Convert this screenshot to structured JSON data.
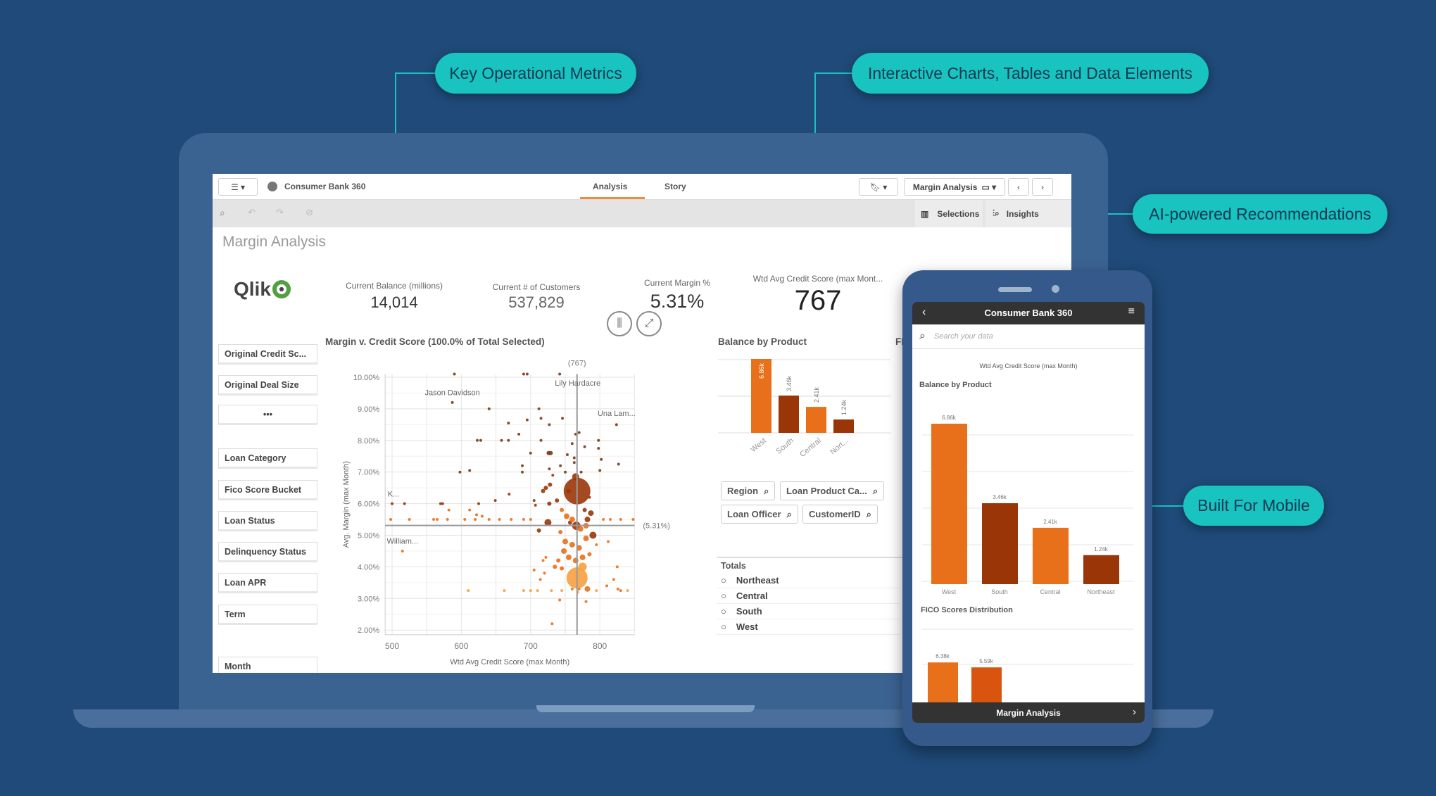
{
  "callouts": {
    "key_metrics": "Key Operational Metrics",
    "interactive": "Interactive Charts, Tables and Data Elements",
    "ai": "AI-powered Recommendations",
    "mobile": "Built For Mobile"
  },
  "colors": {
    "background": "#1f4a79",
    "accent": "#19c3c0",
    "orange": "#e8701a",
    "dark": "#9a3508",
    "light": "#f7a040"
  },
  "app": {
    "title": "Consumer Bank 360",
    "tabs": [
      "Analysis",
      "Story"
    ],
    "active_tab": "Analysis",
    "sheet_selector": "Margin Analysis",
    "selections": "Selections",
    "insights": "Insights",
    "sheet_title": "Margin Analysis",
    "logo": "Qlik"
  },
  "kpis": [
    {
      "label": "Current Balance (millions)",
      "value": "14,014"
    },
    {
      "label": "Current # of Customers",
      "value": "537,829"
    },
    {
      "label": "Current Margin %",
      "value": "5.31%"
    },
    {
      "label": "Wtd Avg Credit Score (max Mont...",
      "value": "767"
    }
  ],
  "filters": [
    "Original Credit Sc...",
    "Original Deal Size",
    "•••",
    "Loan Category",
    "Fico Score Bucket",
    "Loan Status",
    "Delinquency Status",
    "Loan APR",
    "Term",
    "Month"
  ],
  "search_chips": [
    "Region",
    "Loan Product Ca...",
    "Loan Officer",
    "CustomerID"
  ],
  "totals": {
    "title": "Totals",
    "items": [
      "Northeast",
      "Central",
      "South",
      "West"
    ]
  },
  "cut_title": "FI",
  "chart_data": [
    {
      "type": "scatter",
      "title": "Margin v. Credit Score (100.0% of Total Selected)",
      "xlabel": "Wtd Avg Credit Score (max Month)",
      "ylabel": "Avg. Margin (max Month)",
      "xlim": [
        490,
        850
      ],
      "ylim": [
        1.85,
        10.1
      ],
      "xticks": [
        "500",
        "600",
        "700",
        "800"
      ],
      "xtick_values": [
        500,
        600,
        700,
        800
      ],
      "yticks": [
        "10.00%",
        "9.00%",
        "8.00%",
        "7.00%",
        "6.00%",
        "5.00%",
        "4.00%",
        "3.00%",
        "2.00%"
      ],
      "ytick_values": [
        10,
        9,
        8,
        7,
        6,
        5,
        4,
        3,
        2
      ],
      "ref_x": 767,
      "ref_x_label": "(767)",
      "ref_y": 5.31,
      "ref_y_label": "(5.31%)",
      "annotations": [
        {
          "text": "Jason Davidson",
          "x": 587,
          "y": 9.25
        },
        {
          "text": "Lily Hardacre",
          "x": 768,
          "y": 9.55
        },
        {
          "text": "Una Lam...",
          "x": 824,
          "y": 8.6
        },
        {
          "text": "K...",
          "x": 502,
          "y": 6.05
        },
        {
          "text": "William...",
          "x": 515,
          "y": 4.55
        }
      ],
      "points": [
        [
          590,
          10.1,
          2,
          3
        ],
        [
          690,
          10.1,
          2,
          3
        ],
        [
          695,
          10.1,
          2,
          3
        ],
        [
          742,
          10.1,
          2,
          3
        ],
        [
          587,
          9.2,
          2,
          3
        ],
        [
          640,
          9.0,
          2,
          3
        ],
        [
          712,
          9.0,
          2,
          3
        ],
        [
          668,
          8.55,
          2,
          3
        ],
        [
          695,
          8.65,
          2,
          3
        ],
        [
          715,
          8.7,
          2,
          3
        ],
        [
          746,
          8.7,
          2,
          3
        ],
        [
          727,
          8.5,
          2,
          3
        ],
        [
          824,
          8.5,
          2,
          3
        ],
        [
          683,
          8.2,
          2,
          3
        ],
        [
          765,
          8.2,
          2,
          3
        ],
        [
          770,
          8.25,
          2,
          3
        ],
        [
          623,
          8.0,
          2,
          3
        ],
        [
          628,
          8.0,
          2,
          3
        ],
        [
          658,
          8.0,
          2,
          3
        ],
        [
          668,
          8.0,
          2,
          3
        ],
        [
          715,
          8.0,
          2,
          3
        ],
        [
          798,
          8.0,
          2,
          3
        ],
        [
          760,
          7.9,
          2,
          3
        ],
        [
          778,
          7.8,
          2,
          3
        ],
        [
          798,
          7.75,
          2,
          3
        ],
        [
          700,
          7.6,
          2,
          3
        ],
        [
          726,
          7.6,
          3,
          3
        ],
        [
          729,
          7.6,
          3,
          3
        ],
        [
          753,
          7.55,
          2,
          3
        ],
        [
          763,
          7.45,
          2,
          3
        ],
        [
          802,
          7.4,
          2,
          3
        ],
        [
          688,
          7.2,
          2,
          3
        ],
        [
          727,
          7.1,
          2,
          3
        ],
        [
          743,
          7.2,
          2,
          3
        ],
        [
          763,
          7.3,
          2,
          3
        ],
        [
          827,
          7.25,
          2,
          3
        ],
        [
          598,
          7.0,
          2,
          3
        ],
        [
          612,
          7.05,
          2,
          3
        ],
        [
          688,
          7.0,
          2,
          3
        ],
        [
          750,
          7.0,
          2,
          3
        ],
        [
          773,
          7.0,
          2,
          3
        ],
        [
          800,
          7.05,
          2,
          3
        ],
        [
          767,
          6.4,
          19,
          0
        ],
        [
          765,
          6.85,
          5,
          0
        ],
        [
          728,
          6.6,
          3,
          0
        ],
        [
          718,
          6.4,
          3,
          0
        ],
        [
          722,
          6.5,
          3,
          0
        ],
        [
          755,
          6.4,
          3,
          0
        ],
        [
          738,
          6.1,
          3,
          0
        ],
        [
          727,
          6.0,
          3,
          0
        ],
        [
          705,
          6.1,
          2,
          0
        ],
        [
          785,
          6.2,
          2,
          0
        ],
        [
          732,
          6.9,
          2,
          0
        ],
        [
          669,
          6.3,
          2,
          0
        ],
        [
          649,
          6.1,
          2,
          0
        ],
        [
          625,
          6.0,
          2,
          0
        ],
        [
          570,
          6.0,
          2,
          0
        ],
        [
          573,
          6.0,
          2,
          0
        ],
        [
          518,
          6.0,
          2,
          0
        ],
        [
          500,
          6.0,
          2,
          0
        ],
        [
          707,
          5.95,
          2,
          0
        ],
        [
          725,
          5.4,
          5,
          0
        ],
        [
          757,
          5.4,
          3,
          0
        ],
        [
          766,
          5.3,
          6,
          0
        ],
        [
          790,
          5.0,
          5,
          0
        ],
        [
          712,
          5.15,
          3,
          0
        ],
        [
          778,
          5.8,
          3,
          0
        ],
        [
          787,
          5.7,
          4,
          0
        ],
        [
          782,
          5.5,
          4,
          0
        ],
        [
          498,
          5.5,
          2,
          1
        ],
        [
          525,
          5.5,
          2,
          1
        ],
        [
          560,
          5.5,
          2,
          1
        ],
        [
          565,
          5.5,
          2,
          1
        ],
        [
          580,
          5.5,
          2,
          1
        ],
        [
          605,
          5.5,
          2,
          1
        ],
        [
          620,
          5.5,
          2,
          1
        ],
        [
          640,
          5.5,
          2,
          1
        ],
        [
          655,
          5.5,
          2,
          1
        ],
        [
          672,
          5.5,
          2,
          1
        ],
        [
          690,
          5.5,
          2,
          1
        ],
        [
          700,
          5.5,
          2,
          1
        ],
        [
          805,
          5.5,
          2,
          1
        ],
        [
          815,
          5.5,
          2,
          1
        ],
        [
          830,
          5.5,
          2,
          1
        ],
        [
          848,
          5.5,
          2,
          1
        ],
        [
          745,
          5.8,
          3,
          1
        ],
        [
          752,
          5.6,
          4,
          1
        ],
        [
          760,
          5.5,
          4,
          1
        ],
        [
          772,
          5.2,
          4,
          1
        ],
        [
          780,
          5.3,
          4,
          1
        ],
        [
          743,
          5.1,
          3,
          1
        ],
        [
          750,
          4.8,
          4,
          1
        ],
        [
          760,
          4.7,
          4,
          1
        ],
        [
          770,
          4.6,
          4,
          1
        ],
        [
          780,
          4.9,
          4,
          1
        ],
        [
          748,
          4.5,
          4,
          1
        ],
        [
          755,
          4.3,
          4,
          1
        ],
        [
          765,
          4.2,
          4,
          1
        ],
        [
          775,
          4.3,
          4,
          1
        ],
        [
          785,
          4.4,
          3,
          1
        ],
        [
          740,
          4.2,
          3,
          1
        ],
        [
          735,
          4.0,
          3,
          1
        ],
        [
          745,
          3.95,
          3,
          1
        ],
        [
          722,
          4.3,
          2,
          1
        ],
        [
          718,
          4.2,
          2,
          1
        ],
        [
          795,
          4.7,
          2,
          1
        ],
        [
          812,
          4.8,
          2,
          1
        ],
        [
          825,
          4.0,
          2,
          1
        ],
        [
          515,
          4.5,
          2,
          1
        ],
        [
          582,
          5.8,
          2,
          1
        ],
        [
          612,
          5.8,
          2,
          1
        ],
        [
          622,
          5.65,
          2,
          1
        ],
        [
          630,
          5.6,
          2,
          1
        ],
        [
          720,
          3.8,
          2,
          1
        ],
        [
          705,
          3.9,
          2,
          1
        ],
        [
          714,
          3.6,
          2,
          1
        ],
        [
          760,
          3.3,
          2,
          1
        ],
        [
          782,
          3.3,
          4,
          1
        ],
        [
          770,
          3.3,
          2,
          1
        ],
        [
          742,
          2.95,
          2,
          1
        ],
        [
          780,
          2.9,
          2,
          1
        ],
        [
          731,
          2.2,
          2,
          1
        ],
        [
          810,
          3.4,
          2,
          1
        ],
        [
          820,
          3.6,
          2,
          1
        ],
        [
          826,
          3.3,
          2,
          1
        ],
        [
          830,
          3.25,
          2,
          1
        ],
        [
          767,
          3.65,
          15,
          2
        ],
        [
          775,
          4.0,
          6,
          2
        ],
        [
          768,
          3.2,
          2,
          2
        ],
        [
          610,
          3.25,
          2,
          2
        ],
        [
          662,
          3.25,
          2,
          2
        ],
        [
          690,
          3.25,
          2,
          2
        ],
        [
          700,
          3.25,
          2,
          2
        ],
        [
          710,
          3.25,
          2,
          2
        ],
        [
          730,
          3.25,
          2,
          2
        ],
        [
          745,
          3.25,
          2,
          2
        ],
        [
          795,
          3.25,
          2,
          2
        ],
        [
          840,
          3.25,
          2,
          2
        ]
      ]
    },
    {
      "type": "bar",
      "title": "Balance by Product",
      "categories": [
        "West",
        "South",
        "Central",
        "Nort..."
      ],
      "values": [
        6.86,
        3.46,
        2.41,
        1.24
      ],
      "labels": [
        "6.86k",
        "3.46k",
        "2.41k",
        "1.24k"
      ],
      "ylim": [
        0,
        7
      ]
    },
    {
      "type": "bar",
      "title": "Balance by Product",
      "categories": [
        "West",
        "South",
        "Central",
        "Northeast"
      ],
      "values": [
        6.86,
        3.46,
        2.41,
        1.24
      ],
      "labels": [
        "6.86k",
        "3.46k",
        "2.41k",
        "1.24k"
      ],
      "ylim": [
        0,
        7.5
      ]
    },
    {
      "type": "bar",
      "title": "FICO Scores Distribution",
      "values": [
        6.38,
        5.59
      ],
      "labels": [
        "6.38k",
        "5.59k"
      ],
      "ylim": [
        0,
        9
      ]
    }
  ],
  "mobile": {
    "title": "Consumer Bank 360",
    "search_placeholder": "Search your data",
    "kpi_caption": "Wtd Avg Credit Score (max Month)",
    "footer": "Margin Analysis"
  }
}
